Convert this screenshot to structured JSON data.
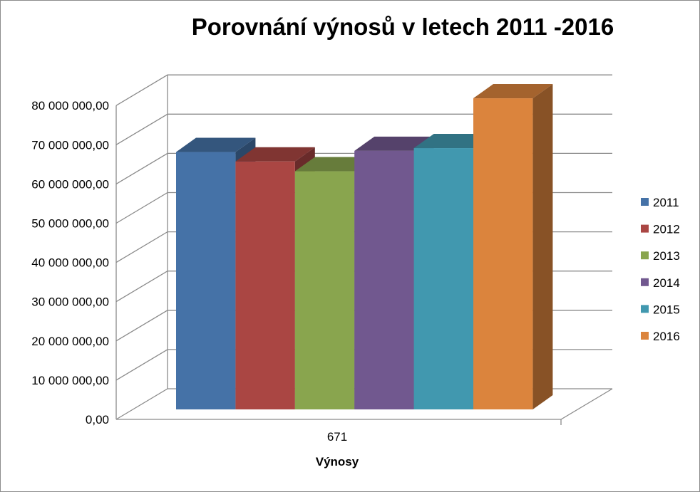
{
  "chart_data": {
    "type": "bar",
    "title": "Porovnání výnosů v letech 2011 -2016",
    "xlabel": "Výnosy",
    "ylabel": "",
    "categories": [
      "671"
    ],
    "ylim": [
      0,
      80000000
    ],
    "ytick_values": [
      0,
      10000000,
      20000000,
      30000000,
      40000000,
      50000000,
      60000000,
      70000000,
      80000000
    ],
    "ytick_labels": [
      "0,00",
      "10 000 000,00",
      "20 000 000,00",
      "30 000 000,00",
      "40 000 000,00",
      "50 000 000,00",
      "60 000 000,00",
      "70 000 000,00",
      "80 000 000,00"
    ],
    "grid": true,
    "legend_position": "right",
    "three_d": true,
    "series": [
      {
        "name": "2011",
        "values": [
          65600000
        ],
        "color": "#4572A7"
      },
      {
        "name": "2012",
        "values": [
          63200000
        ],
        "color": "#AA4643"
      },
      {
        "name": "2013",
        "values": [
          60700000
        ],
        "color": "#89A54E"
      },
      {
        "name": "2014",
        "values": [
          65900000
        ],
        "color": "#71588F"
      },
      {
        "name": "2015",
        "values": [
          66600000
        ],
        "color": "#4198AF"
      },
      {
        "name": "2016",
        "values": [
          79300000
        ],
        "color": "#DB843D"
      }
    ]
  }
}
